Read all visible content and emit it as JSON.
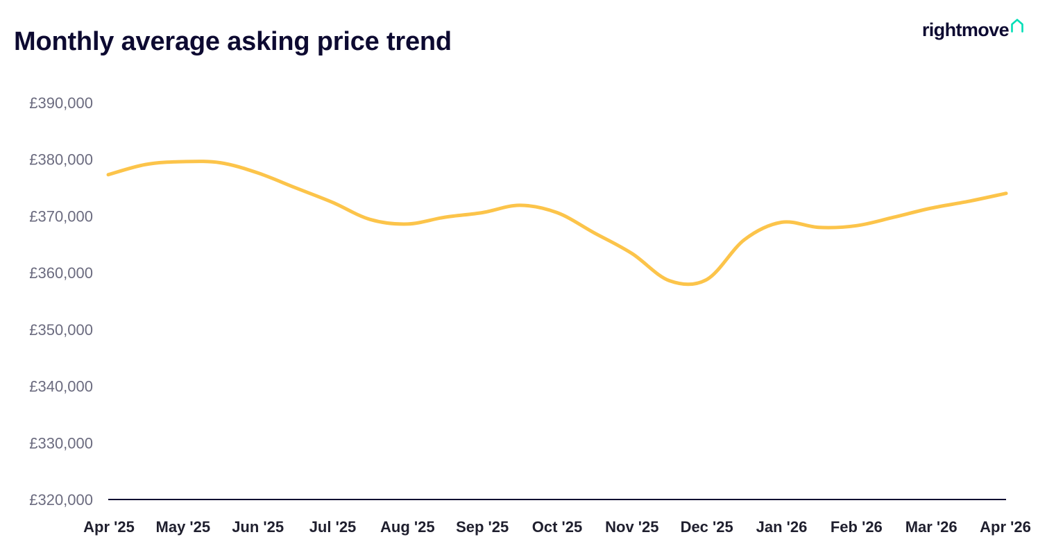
{
  "header": {
    "title": "Monthly average asking price trend"
  },
  "brand": {
    "name": "rightmove",
    "icon": "house-icon",
    "accent_color": "#00deb6"
  },
  "chart_data": {
    "type": "line",
    "title": "Monthly average asking price trend",
    "xlabel": "",
    "ylabel": "",
    "ylim": [
      320000,
      390000
    ],
    "y_ticks": [
      {
        "value": 390000,
        "label": "£390,000"
      },
      {
        "value": 380000,
        "label": "£380,000"
      },
      {
        "value": 370000,
        "label": "£370,000"
      },
      {
        "value": 360000,
        "label": "£360,000"
      },
      {
        "value": 350000,
        "label": "£350,000"
      },
      {
        "value": 340000,
        "label": "£340,000"
      },
      {
        "value": 330000,
        "label": "£330,000"
      },
      {
        "value": 320000,
        "label": "£320,000"
      }
    ],
    "categories": [
      "Apr '25",
      "May '25",
      "Jun '25",
      "Jul '25",
      "Aug '25",
      "Sep '25",
      "Oct '25",
      "Nov '25",
      "Dec '25",
      "Jan '26",
      "Feb '26",
      "Mar '26",
      "Apr '26"
    ],
    "grid": false,
    "line_color": "#fcc44a",
    "axis_color": "#0d0a31",
    "series": [
      {
        "name": "Average asking price",
        "x": [
          0,
          0.5,
          1,
          1.5,
          2,
          2.5,
          3,
          3.5,
          4,
          4.5,
          5,
          5.5,
          6,
          6.5,
          7,
          7.5,
          8,
          8.5,
          9,
          9.5,
          10,
          10.5,
          11,
          11.5,
          12
        ],
        "values": [
          377300,
          379100,
          379600,
          379400,
          377600,
          375000,
          372400,
          369400,
          368600,
          369800,
          370600,
          371900,
          370600,
          367000,
          363400,
          358600,
          358800,
          365800,
          368900,
          368000,
          368300,
          369800,
          371400,
          372600,
          374000
        ]
      }
    ]
  }
}
